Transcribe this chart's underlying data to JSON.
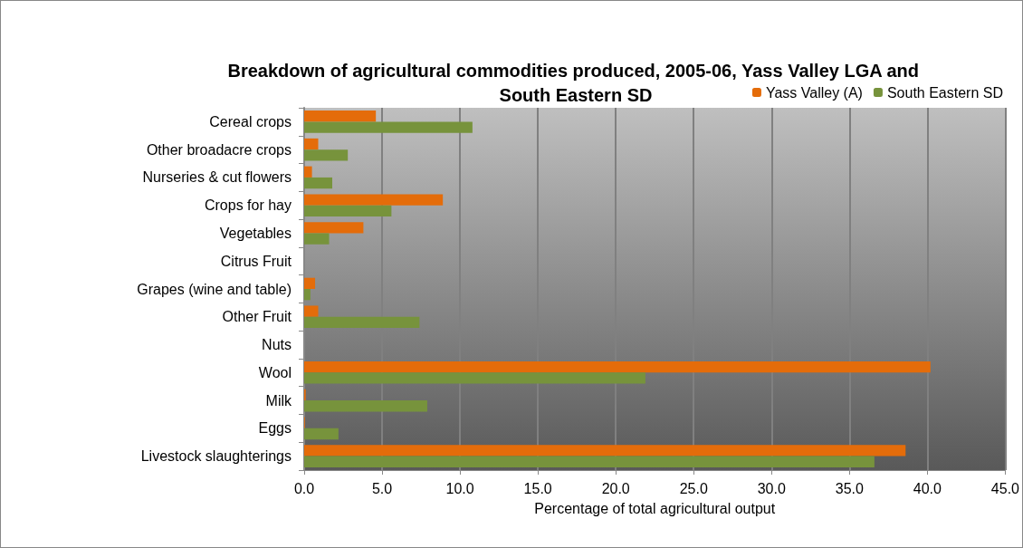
{
  "chart_data": {
    "type": "bar",
    "orientation": "horizontal",
    "title": "Breakdown of agricultural commodities produced, 2005-06, Yass Valley LGA and South Eastern SD",
    "xlabel": "Percentage of total agricultural output",
    "categories": [
      "Cereal crops",
      "Other broadacre crops",
      "Nurseries & cut flowers",
      "Crops for hay",
      "Vegetables",
      "Citrus Fruit",
      "Grapes (wine and table)",
      "Other Fruit",
      "Nuts",
      "Wool",
      "Milk",
      "Eggs",
      "Livestock slaughterings"
    ],
    "series": [
      {
        "name": "Yass Valley (A)",
        "color": "#e46c0a",
        "values": [
          4.6,
          0.9,
          0.5,
          8.9,
          3.8,
          0,
          0.7,
          0.9,
          0,
          40.2,
          0.1,
          0.05,
          38.6
        ]
      },
      {
        "name": "South Eastern SD",
        "color": "#77933c",
        "values": [
          10.8,
          2.8,
          1.8,
          5.6,
          1.6,
          0,
          0.4,
          7.4,
          0,
          21.9,
          7.9,
          2.2,
          36.6
        ]
      }
    ],
    "xlim": [
      0,
      45
    ],
    "xticks": [
      {
        "value": 0,
        "label": "0.0"
      },
      {
        "value": 5,
        "label": "5.0"
      },
      {
        "value": 10,
        "label": "10.0"
      },
      {
        "value": 15,
        "label": "15.0"
      },
      {
        "value": 20,
        "label": "20.0"
      },
      {
        "value": 25,
        "label": "25.0"
      },
      {
        "value": 30,
        "label": "30.0"
      },
      {
        "value": 35,
        "label": "35.0"
      },
      {
        "value": 40,
        "label": "40.0"
      },
      {
        "value": 45,
        "label": "45.0"
      }
    ],
    "grid": "x",
    "legend": "top right"
  }
}
